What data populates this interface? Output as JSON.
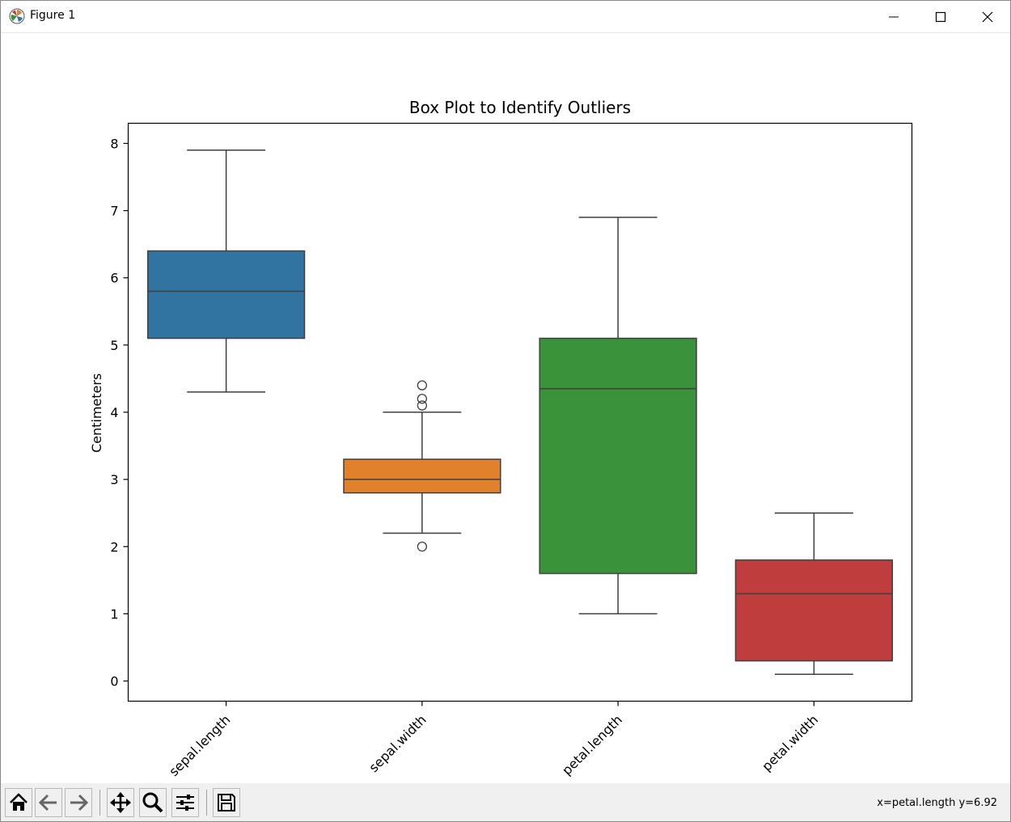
{
  "window": {
    "title": "Figure 1",
    "icon": "matplotlib-icon",
    "controls": [
      "minimize-icon",
      "maximize-icon",
      "close-icon"
    ]
  },
  "toolbar": {
    "buttons": [
      "home-icon",
      "back-icon",
      "forward-icon",
      "pan-icon",
      "zoom-icon",
      "configure-subplots-icon",
      "save-icon"
    ],
    "status_text": "x=petal.length y=6.92"
  },
  "colors": {
    "sepal.length": "#3274a1",
    "sepal.width": "#e1812c",
    "petal.length": "#3a923a",
    "petal.width": "#c03d3e"
  },
  "chart_data": {
    "type": "box",
    "title": "Box Plot to Identify Outliers",
    "xlabel": "",
    "ylabel": "Centimeters",
    "ylim": [
      -0.3,
      8.3
    ],
    "yticks": [
      0,
      1,
      2,
      3,
      4,
      5,
      6,
      7,
      8
    ],
    "categories": [
      "sepal.length",
      "sepal.width",
      "petal.length",
      "petal.width"
    ],
    "boxes": [
      {
        "name": "sepal.length",
        "whisker_low": 4.3,
        "q1": 5.1,
        "median": 5.8,
        "q3": 6.4,
        "whisker_high": 7.9,
        "outliers": []
      },
      {
        "name": "sepal.width",
        "whisker_low": 2.2,
        "q1": 2.8,
        "median": 3.0,
        "q3": 3.3,
        "whisker_high": 4.0,
        "outliers": [
          4.4,
          4.2,
          4.1,
          2.0
        ]
      },
      {
        "name": "petal.length",
        "whisker_low": 1.0,
        "q1": 1.6,
        "median": 4.35,
        "q3": 5.1,
        "whisker_high": 6.9,
        "outliers": []
      },
      {
        "name": "petal.width",
        "whisker_low": 0.1,
        "q1": 0.3,
        "median": 1.3,
        "q3": 1.8,
        "whisker_high": 2.5,
        "outliers": []
      }
    ],
    "xtick_rotation": 45,
    "grid": false,
    "legend": "none"
  }
}
